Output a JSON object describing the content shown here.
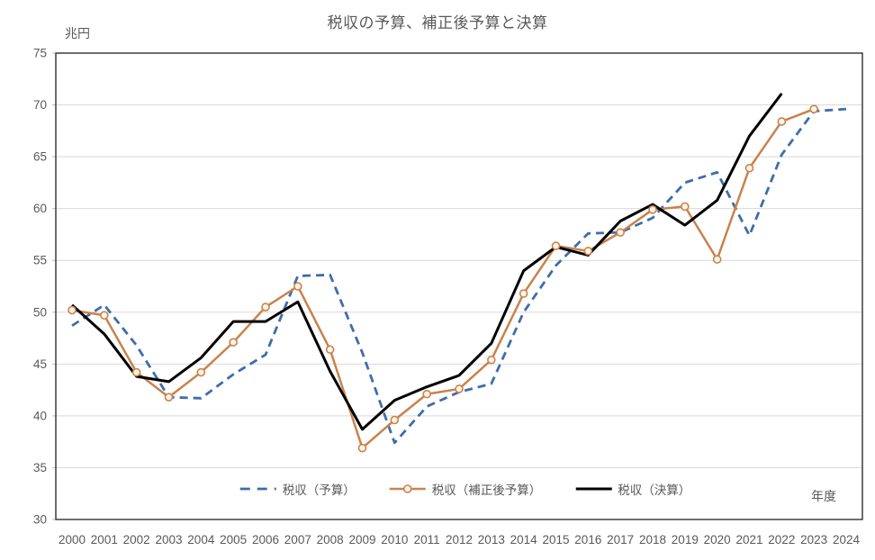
{
  "chart": {
    "title": "税収の予算、補正後予算と決算",
    "y_axis_title": "兆円",
    "x_axis_title": "年度"
  },
  "colors": {
    "text": "#595959",
    "grid": "#D9D9D9",
    "tick": "#BFBFBF",
    "border": "#0D0D0D",
    "background": "#FFFFFF",
    "budget_blue": "#3E6DA9",
    "supplementary_orange": "#C8834D",
    "settlement_black": "#000000"
  },
  "chart_data": {
    "type": "line",
    "title": "税収の予算、補正後予算と決算",
    "xlabel": "年度",
    "ylabel": "兆円",
    "ylim": [
      30,
      75
    ],
    "ytick_step": 5,
    "grid": "horizontal",
    "legend_position": "bottom-center",
    "x": [
      2000,
      2001,
      2002,
      2003,
      2004,
      2005,
      2006,
      2007,
      2008,
      2009,
      2010,
      2011,
      2012,
      2013,
      2014,
      2015,
      2016,
      2017,
      2018,
      2019,
      2020,
      2021,
      2022,
      2023,
      2024
    ],
    "series": [
      {
        "key": "yosan",
        "name": "税収（予算）",
        "color": "#3E6DA9",
        "line_style": "dashed",
        "width": 2.8,
        "marker": "none",
        "values": [
          48.7,
          50.7,
          46.8,
          41.8,
          41.7,
          44.0,
          45.9,
          53.5,
          53.6,
          46.1,
          37.4,
          40.9,
          42.3,
          43.1,
          50.0,
          54.5,
          57.6,
          57.7,
          59.1,
          62.5,
          63.5,
          57.4,
          65.2,
          69.4,
          69.6
        ]
      },
      {
        "key": "hoseigo-yosan",
        "name": "税収（補正後予算）",
        "color": "#C8834D",
        "line_style": "solid",
        "width": 2.5,
        "marker": "circle",
        "marker_fill": "#FDF4E8",
        "values": [
          50.2,
          49.7,
          44.2,
          41.8,
          44.2,
          47.1,
          50.5,
          52.5,
          46.4,
          36.9,
          39.6,
          42.1,
          42.6,
          45.4,
          51.8,
          56.4,
          55.9,
          57.7,
          59.9,
          60.2,
          55.1,
          63.9,
          68.4,
          69.6,
          null
        ]
      },
      {
        "key": "kessan",
        "name": "税収（決算）",
        "color": "#000000",
        "line_style": "solid",
        "width": 3,
        "marker": "none",
        "values": [
          50.7,
          47.9,
          43.8,
          43.3,
          45.6,
          49.1,
          49.1,
          51.0,
          44.3,
          38.7,
          41.5,
          42.8,
          43.9,
          47.0,
          54.0,
          56.3,
          55.5,
          58.8,
          60.4,
          58.4,
          60.8,
          67.0,
          71.1,
          null,
          null
        ]
      }
    ]
  }
}
